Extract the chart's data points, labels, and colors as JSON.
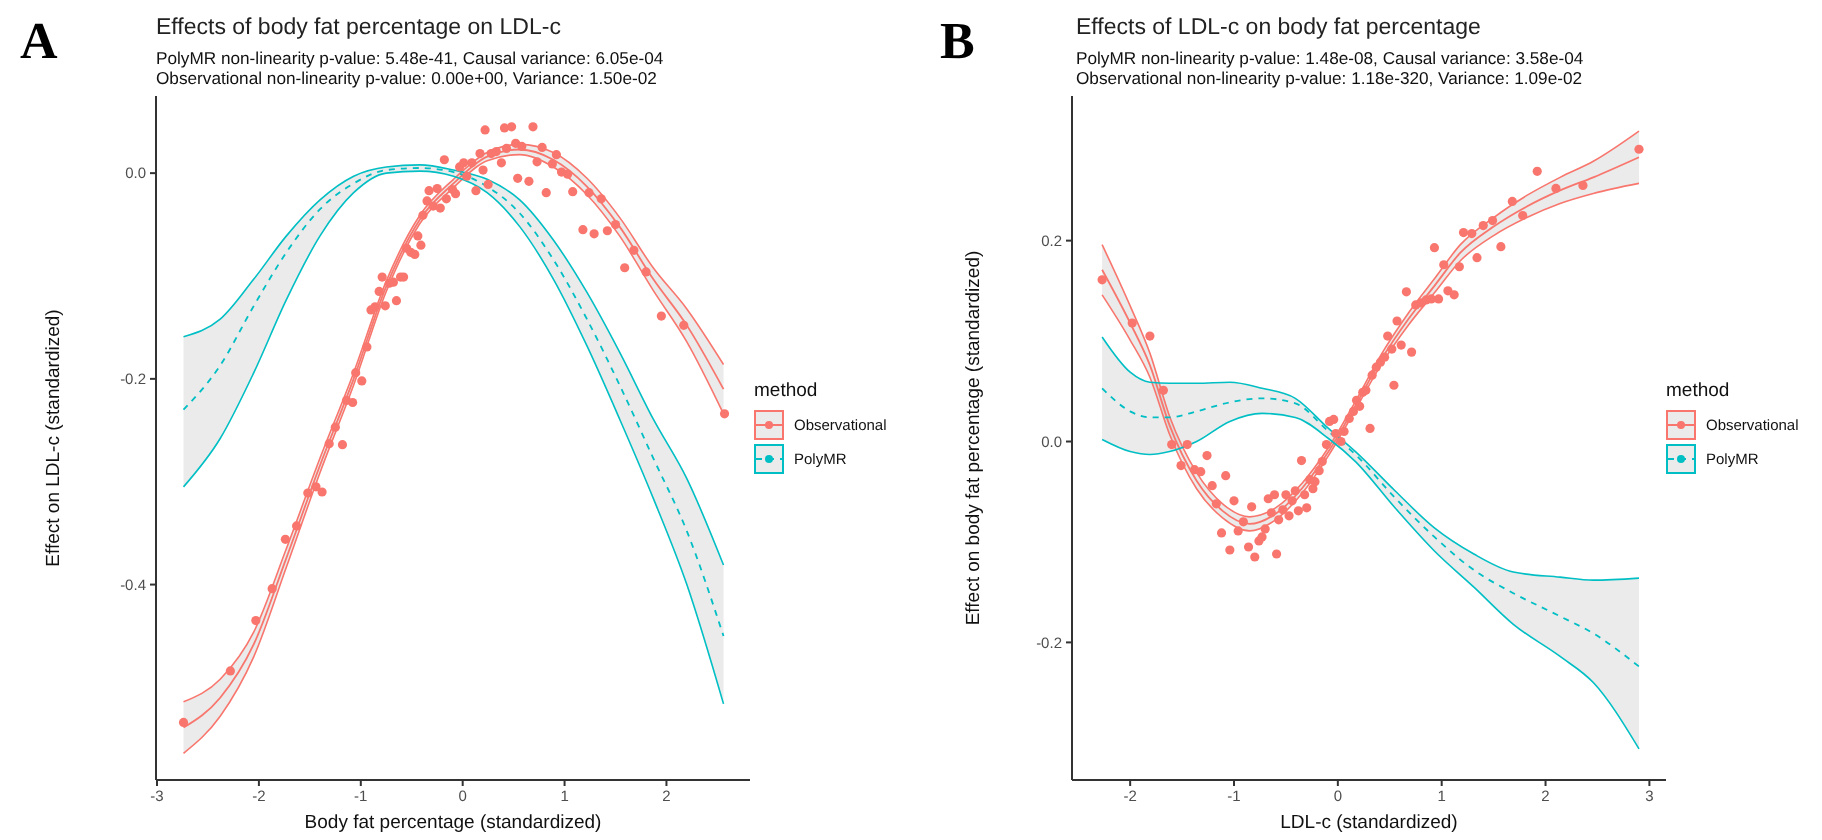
{
  "chart_data": [
    {
      "type": "scatter",
      "annotations": [
        "A"
      ],
      "title": "Effects of body fat percentage on LDL-c",
      "subtitle": "PolyMR non-linearity p-value: 5.48e-41, Causal variance: 6.05e-04\nObservational non-linearity p-value: 0.00e+00, Variance: 1.50e-02",
      "xlabel": "Body fat percentage (standardized)",
      "ylabel": "Effect on LDL-c (standardized)",
      "legend_title": "method",
      "legend": "right",
      "xlim": [
        -3.01,
        2.82
      ],
      "xticks": [
        -3,
        -2,
        -1,
        0,
        1,
        2
      ],
      "ylim": [
        -0.59,
        0.075
      ],
      "yticks": [
        {
          "value": -0.4,
          "label": "-0.4"
        },
        {
          "value": -0.2,
          "label": "-0.2"
        },
        {
          "value": 0,
          "label": "0.0"
        }
      ],
      "series": [
        {
          "type": "scatter",
          "name": "Observational",
          "color": "#f8766d",
          "marker": "circle",
          "x": [
            -2.74,
            -2.28,
            -2.03,
            -1.87,
            -1.74,
            -1.63,
            -1.52,
            -1.44,
            -1.38,
            -1.31,
            -1.25,
            -1.18,
            -1.14,
            -1.08,
            -1.05,
            -0.99,
            -0.94,
            -0.9,
            -0.86,
            -0.82,
            -0.79,
            -0.76,
            -0.72,
            -0.68,
            -0.65,
            -0.61,
            -0.58,
            -0.55,
            -0.51,
            -0.47,
            -0.41,
            -0.44,
            -0.39,
            -0.35,
            -0.33,
            -0.29,
            -0.25,
            -0.22,
            -0.18,
            -0.16,
            -0.1,
            -0.07,
            -0.03,
            0.01,
            0.04,
            0.09,
            0.13,
            0.17,
            0.2,
            0.22,
            0.25,
            0.28,
            0.33,
            0.38,
            0.41,
            0.43,
            0.48,
            0.52,
            0.54,
            0.58,
            0.65,
            0.69,
            0.73,
            0.78,
            0.82,
            0.88,
            0.92,
            0.97,
            1.03,
            1.08,
            1.18,
            1.24,
            1.29,
            1.36,
            1.42,
            1.5,
            1.59,
            1.68,
            1.8,
            1.95,
            2.17,
            2.57
          ],
          "values": [
            -0.534,
            -0.484,
            -0.435,
            -0.404,
            -0.356,
            -0.343,
            -0.311,
            -0.305,
            -0.31,
            -0.263,
            -0.247,
            -0.264,
            -0.221,
            -0.223,
            -0.194,
            -0.202,
            -0.169,
            -0.133,
            -0.13,
            -0.115,
            -0.101,
            -0.129,
            -0.107,
            -0.106,
            -0.124,
            -0.101,
            -0.101,
            -0.073,
            -0.077,
            -0.079,
            -0.07,
            -0.061,
            -0.041,
            -0.027,
            -0.017,
            -0.032,
            -0.015,
            -0.034,
            0.013,
            -0.025,
            -0.016,
            -0.02,
            0.006,
            0.01,
            -0.003,
            0.01,
            -0.017,
            0.019,
            0.003,
            0.042,
            -0.011,
            0.019,
            0.021,
            0.01,
            0.044,
            0.024,
            0.045,
            0.029,
            -0.005,
            0.026,
            -0.008,
            0.045,
            0.011,
            0.025,
            -0.019,
            0.009,
            0.018,
            0.001,
            -0.001,
            -0.018,
            -0.055,
            -0.019,
            -0.059,
            -0.025,
            -0.056,
            -0.05,
            -0.092,
            -0.075,
            -0.096,
            -0.139,
            -0.148,
            -0.234
          ]
        },
        {
          "type": "line",
          "color": "#f8766d",
          "line_style": "solid",
          "x": [
            -2.74,
            -2.38,
            -2.05,
            -1.73,
            -1.4,
            -1.07,
            -0.75,
            -0.42,
            -0.09,
            0.24,
            0.56,
            0.89,
            1.22,
            1.54,
            1.87,
            2.2,
            2.56
          ],
          "values": [
            -0.564,
            -0.528,
            -0.47,
            -0.383,
            -0.291,
            -0.206,
            -0.115,
            -0.049,
            -0.014,
            0.012,
            0.018,
            0.006,
            -0.021,
            -0.061,
            -0.114,
            -0.164,
            -0.234
          ]
        },
        {
          "type": "line",
          "color": "#f8766d",
          "line_style": "solid",
          "x": [
            -2.74,
            -2.38,
            -2.05,
            -1.73,
            -1.4,
            -1.07,
            -0.75,
            -0.42,
            -0.09,
            0.24,
            0.56,
            0.89,
            1.22,
            1.54,
            1.87,
            2.2,
            2.56
          ],
          "values": [
            -0.514,
            -0.492,
            -0.446,
            -0.365,
            -0.277,
            -0.194,
            -0.105,
            -0.041,
            -0.006,
            0.02,
            0.028,
            0.02,
            -0.005,
            -0.043,
            -0.092,
            -0.132,
            -0.186
          ]
        },
        {
          "type": "line",
          "color": "#f8766d",
          "line_style": "solid",
          "x": [
            -2.74,
            -2.38,
            -2.05,
            -1.73,
            -1.4,
            -1.07,
            -0.75,
            -0.42,
            -0.09,
            0.24,
            0.56,
            0.89,
            1.22,
            1.54,
            1.87,
            2.2,
            2.56
          ],
          "values": [
            -0.539,
            -0.51,
            -0.458,
            -0.374,
            -0.284,
            -0.2,
            -0.11,
            -0.045,
            -0.01,
            0.016,
            0.023,
            0.013,
            -0.013,
            -0.052,
            -0.103,
            -0.148,
            -0.21
          ],
          "lower": [
            -0.564,
            -0.528,
            -0.47,
            -0.383,
            -0.291,
            -0.206,
            -0.115,
            -0.049,
            -0.014,
            0.012,
            0.018,
            0.006,
            -0.021,
            -0.061,
            -0.114,
            -0.164,
            -0.234
          ],
          "upper": [
            -0.514,
            -0.492,
            -0.446,
            -0.365,
            -0.277,
            -0.194,
            -0.105,
            -0.041,
            -0.006,
            0.02,
            0.028,
            0.02,
            -0.005,
            -0.043,
            -0.092,
            -0.132,
            -0.186
          ]
        },
        {
          "type": "line",
          "color": "#00bfc4",
          "line_style": "solid",
          "x": [
            -2.74,
            -2.38,
            -2.05,
            -1.73,
            -1.4,
            -1.07,
            -0.75,
            -0.42,
            -0.09,
            0.24,
            0.56,
            0.89,
            1.22,
            1.54,
            1.87,
            2.2,
            2.56
          ],
          "values": [
            -0.305,
            -0.258,
            -0.194,
            -0.123,
            -0.061,
            -0.019,
            0.0,
            0.002,
            -0.003,
            -0.019,
            -0.052,
            -0.103,
            -0.168,
            -0.239,
            -0.316,
            -0.4,
            -0.516
          ]
        },
        {
          "type": "line",
          "color": "#00bfc4",
          "line_style": "solid",
          "x": [
            -2.74,
            -2.38,
            -2.05,
            -1.73,
            -1.4,
            -1.07,
            -0.75,
            -0.42,
            -0.09,
            0.24,
            0.56,
            0.89,
            1.22,
            1.54,
            1.87,
            2.2,
            2.56
          ],
          "values": [
            -0.159,
            -0.142,
            -0.103,
            -0.061,
            -0.026,
            -0.003,
            0.006,
            0.008,
            0.003,
            -0.006,
            -0.026,
            -0.065,
            -0.116,
            -0.174,
            -0.239,
            -0.297,
            -0.381
          ]
        },
        {
          "type": "line",
          "name": "PolyMR",
          "color": "#00bfc4",
          "line_style": "dashed",
          "x": [
            -2.74,
            -2.38,
            -2.05,
            -1.73,
            -1.4,
            -1.07,
            -0.75,
            -0.42,
            -0.09,
            0.24,
            0.56,
            0.89,
            1.22,
            1.54,
            1.87,
            2.2,
            2.56
          ],
          "values": [
            -0.23,
            -0.187,
            -0.129,
            -0.077,
            -0.035,
            -0.01,
            0.003,
            0.005,
            0.001,
            -0.013,
            -0.039,
            -0.084,
            -0.142,
            -0.206,
            -0.277,
            -0.348,
            -0.45
          ],
          "lower": [
            -0.305,
            -0.258,
            -0.194,
            -0.123,
            -0.061,
            -0.019,
            0.0,
            0.002,
            -0.003,
            -0.019,
            -0.052,
            -0.103,
            -0.168,
            -0.239,
            -0.316,
            -0.4,
            -0.516
          ],
          "upper": [
            -0.159,
            -0.142,
            -0.103,
            -0.061,
            -0.026,
            -0.003,
            0.006,
            0.008,
            0.003,
            -0.006,
            -0.026,
            -0.065,
            -0.116,
            -0.174,
            -0.239,
            -0.297,
            -0.381
          ]
        }
      ]
    },
    {
      "type": "scatter",
      "annotations": [
        "B"
      ],
      "title": "Effects of LDL-c on body fat percentage",
      "subtitle": "PolyMR non-linearity p-value: 1.48e-08, Causal variance: 3.58e-04\nObservational non-linearity p-value: 1.18e-320, Variance: 1.09e-02",
      "xlabel": "LDL-c (standardized)",
      "ylabel": "Effect on body fat percentage (standardized)",
      "legend_title": "method",
      "legend": "right",
      "xlim": [
        -2.56,
        3.16
      ],
      "xticks": [
        -2,
        -1,
        0,
        1,
        2,
        3
      ],
      "ylim": [
        -0.337,
        0.344
      ],
      "yticks": [
        {
          "value": -0.2,
          "label": "-0.2"
        },
        {
          "value": 0,
          "label": "0.0"
        },
        {
          "value": 0.2,
          "label": "0.2"
        }
      ],
      "series": [
        {
          "type": "scatter",
          "name": "Observational",
          "color": "#f8766d",
          "marker": "circle",
          "x": [
            -2.27,
            -1.98,
            -1.81,
            -1.68,
            -1.6,
            -1.51,
            -1.45,
            -1.38,
            -1.32,
            -1.26,
            -1.21,
            -1.17,
            -1.12,
            -1.08,
            -1.04,
            -1.0,
            -0.96,
            -0.91,
            -0.86,
            -0.83,
            -0.8,
            -0.76,
            -0.73,
            -0.7,
            -0.67,
            -0.64,
            -0.61,
            -0.59,
            -0.57,
            -0.53,
            -0.5,
            -0.47,
            -0.44,
            -0.41,
            -0.38,
            -0.35,
            -0.32,
            -0.3,
            -0.27,
            -0.24,
            -0.22,
            -0.18,
            -0.15,
            -0.11,
            -0.08,
            -0.04,
            -0.02,
            0.03,
            0.06,
            0.11,
            0.15,
            0.18,
            0.21,
            0.24,
            0.27,
            0.31,
            0.33,
            0.37,
            0.41,
            0.45,
            0.48,
            0.52,
            0.54,
            0.57,
            0.61,
            0.66,
            0.71,
            0.75,
            0.8,
            0.85,
            0.9,
            0.93,
            0.97,
            1.02,
            1.06,
            1.12,
            1.17,
            1.21,
            1.29,
            1.34,
            1.4,
            1.49,
            1.57,
            1.68,
            1.78,
            1.92,
            2.1,
            2.36,
            2.9
          ],
          "values": [
            0.161,
            0.118,
            0.105,
            0.051,
            -0.003,
            -0.024,
            -0.003,
            -0.028,
            -0.03,
            -0.014,
            -0.044,
            -0.062,
            -0.091,
            -0.034,
            -0.108,
            -0.059,
            -0.089,
            -0.08,
            -0.105,
            -0.065,
            -0.115,
            -0.099,
            -0.095,
            -0.087,
            -0.057,
            -0.071,
            -0.053,
            -0.112,
            -0.078,
            -0.068,
            -0.053,
            -0.074,
            -0.059,
            -0.049,
            -0.069,
            -0.019,
            -0.053,
            -0.066,
            -0.038,
            -0.047,
            -0.04,
            -0.029,
            -0.02,
            -0.003,
            0.02,
            0.022,
            0.008,
            0.0,
            0.01,
            0.023,
            0.03,
            0.041,
            0.035,
            0.049,
            0.051,
            0.013,
            0.066,
            0.074,
            0.079,
            0.084,
            0.105,
            0.092,
            0.056,
            0.12,
            0.096,
            0.149,
            0.089,
            0.136,
            0.138,
            0.141,
            0.142,
            0.193,
            0.142,
            0.176,
            0.15,
            0.146,
            0.174,
            0.208,
            0.207,
            0.183,
            0.215,
            0.22,
            0.194,
            0.239,
            0.225,
            0.269,
            0.252,
            0.255,
            0.291
          ]
        },
        {
          "type": "line",
          "color": "#f8766d",
          "line_style": "solid",
          "x": [
            -2.27,
            -2.0,
            -1.81,
            -1.62,
            -1.36,
            -1.11,
            -0.85,
            -0.6,
            -0.34,
            -0.09,
            0.17,
            0.42,
            0.68,
            0.93,
            1.18,
            1.5,
            1.82,
            2.14,
            2.46,
            2.9
          ],
          "values": [
            0.146,
            0.101,
            0.064,
            0.007,
            -0.047,
            -0.076,
            -0.089,
            -0.078,
            -0.051,
            -0.014,
            0.032,
            0.077,
            0.116,
            0.148,
            0.18,
            0.205,
            0.223,
            0.237,
            0.247,
            0.257
          ]
        },
        {
          "type": "line",
          "color": "#f8766d",
          "line_style": "solid",
          "x": [
            -2.27,
            -2.0,
            -1.81,
            -1.62,
            -1.36,
            -1.11,
            -0.85,
            -0.6,
            -0.34,
            -0.09,
            0.17,
            0.42,
            0.68,
            0.93,
            1.18,
            1.5,
            1.82,
            2.14,
            2.46,
            2.9
          ],
          "values": [
            0.196,
            0.135,
            0.088,
            0.025,
            -0.031,
            -0.062,
            -0.075,
            -0.066,
            -0.041,
            -0.006,
            0.04,
            0.087,
            0.128,
            0.162,
            0.196,
            0.223,
            0.245,
            0.263,
            0.279,
            0.309
          ]
        },
        {
          "type": "line",
          "color": "#f8766d",
          "line_style": "solid",
          "x": [
            -2.27,
            -2.0,
            -1.81,
            -1.62,
            -1.36,
            -1.11,
            -0.85,
            -0.6,
            -0.34,
            -0.09,
            0.17,
            0.42,
            0.68,
            0.93,
            1.18,
            1.5,
            1.82,
            2.14,
            2.46,
            2.9
          ],
          "values": [
            0.171,
            0.118,
            0.076,
            0.016,
            -0.039,
            -0.069,
            -0.082,
            -0.072,
            -0.046,
            -0.01,
            0.036,
            0.082,
            0.122,
            0.155,
            0.188,
            0.214,
            0.234,
            0.25,
            0.263,
            0.283
          ],
          "lower": [
            0.146,
            0.101,
            0.064,
            0.007,
            -0.047,
            -0.076,
            -0.089,
            -0.078,
            -0.051,
            -0.014,
            0.032,
            0.077,
            0.116,
            0.148,
            0.18,
            0.205,
            0.223,
            0.237,
            0.247,
            0.257
          ],
          "upper": [
            0.196,
            0.135,
            0.088,
            0.025,
            -0.031,
            -0.062,
            -0.075,
            -0.066,
            -0.041,
            -0.006,
            0.04,
            0.087,
            0.128,
            0.162,
            0.196,
            0.223,
            0.245,
            0.263,
            0.279,
            0.309
          ]
        },
        {
          "type": "line",
          "color": "#00bfc4",
          "line_style": "solid",
          "x": [
            -2.27,
            -2.0,
            -1.81,
            -1.62,
            -1.36,
            -1.04,
            -0.73,
            -0.41,
            -0.09,
            0.17,
            0.55,
            0.93,
            1.31,
            1.69,
            2.14,
            2.46,
            2.9
          ],
          "values": [
            0.002,
            -0.01,
            -0.013,
            -0.01,
            0.0,
            0.02,
            0.028,
            0.024,
            0.003,
            -0.02,
            -0.066,
            -0.109,
            -0.145,
            -0.182,
            -0.214,
            -0.24,
            -0.306
          ]
        },
        {
          "type": "line",
          "color": "#00bfc4",
          "line_style": "solid",
          "x": [
            -2.27,
            -2.0,
            -1.81,
            -1.62,
            -1.36,
            -1.04,
            -0.73,
            -0.41,
            -0.09,
            0.17,
            0.55,
            0.93,
            1.31,
            1.69,
            2.14,
            2.46,
            2.9
          ],
          "values": [
            0.104,
            0.069,
            0.059,
            0.058,
            0.058,
            0.059,
            0.053,
            0.043,
            0.013,
            -0.01,
            -0.049,
            -0.086,
            -0.112,
            -0.13,
            -0.135,
            -0.138,
            -0.136
          ]
        },
        {
          "type": "line",
          "name": "PolyMR",
          "color": "#00bfc4",
          "line_style": "dashed",
          "x": [
            -2.27,
            -2.0,
            -1.81,
            -1.62,
            -1.36,
            -1.04,
            -0.73,
            -0.41,
            -0.09,
            0.17,
            0.55,
            0.93,
            1.31,
            1.69,
            2.14,
            2.46,
            2.9
          ],
          "values": [
            0.053,
            0.03,
            0.024,
            0.024,
            0.03,
            0.039,
            0.043,
            0.038,
            0.01,
            -0.013,
            -0.056,
            -0.095,
            -0.128,
            -0.151,
            -0.174,
            -0.191,
            -0.224
          ],
          "lower": [
            0.002,
            -0.01,
            -0.013,
            -0.01,
            0.0,
            0.02,
            0.028,
            0.024,
            0.003,
            -0.02,
            -0.066,
            -0.109,
            -0.145,
            -0.182,
            -0.214,
            -0.24,
            -0.306
          ],
          "upper": [
            0.104,
            0.069,
            0.059,
            0.058,
            0.058,
            0.059,
            0.053,
            0.043,
            0.013,
            -0.01,
            -0.049,
            -0.086,
            -0.112,
            -0.13,
            -0.135,
            -0.138,
            -0.136
          ]
        }
      ]
    }
  ]
}
